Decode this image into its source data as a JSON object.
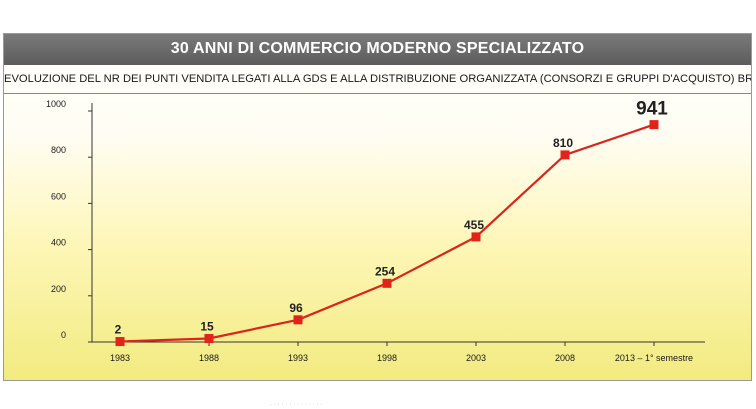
{
  "header": {
    "title": "30 ANNI DI COMMERCIO MODERNO SPECIALIZZATO",
    "subtitle": "EVOLUZIONE DEL NR DEI PUNTI VENDITA LEGATI ALLA GDS E ALLA DISTRIBUZIONE ORGANIZZATA (CONSORZI E GRUPPI D'ACQUISTO) BRICO-GARDEN"
  },
  "colors": {
    "line": "#d9251c",
    "marker": "#e2231a",
    "title_bar": "#6b6b6b"
  },
  "chart_data": {
    "type": "line",
    "title": "30 ANNI DI COMMERCIO MODERNO SPECIALIZZATO",
    "subtitle": "EVOLUZIONE DEL NR DEI PUNTI VENDITA LEGATI ALLA GDS E ALLA DISTRIBUZIONE ORGANIZZATA (CONSORZI E GRUPPI D'ACQUISTO) BRICO-GARDEN",
    "categories": [
      "1983",
      "1988",
      "1993",
      "1998",
      "2003",
      "2008",
      "2013 – 1° semestre"
    ],
    "values": [
      2,
      15,
      96,
      254,
      455,
      810,
      941
    ],
    "data_labels": [
      "2",
      "15",
      "96",
      "254",
      "455",
      "810",
      "941"
    ],
    "xlabel": "",
    "ylabel": "",
    "ylim": [
      0,
      1000
    ],
    "yticks": [
      0,
      200,
      400,
      600,
      800,
      1000
    ],
    "ytick_labels": [
      "0",
      "200",
      "400",
      "600",
      "800",
      "1000"
    ],
    "grid": false,
    "legend": "none"
  },
  "footer": {
    "text": ". . . . . . . . . . . . . ."
  }
}
